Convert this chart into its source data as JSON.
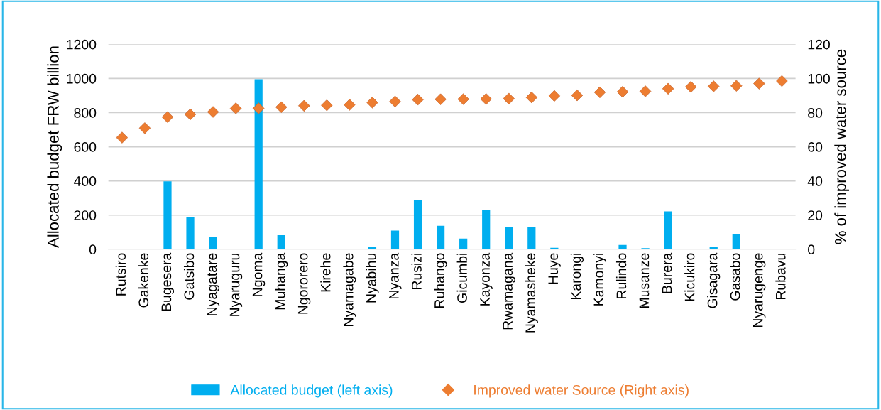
{
  "chart_data": {
    "type": "bar",
    "ylabel": "Allocated budget FRW billion",
    "y2label": "% of improved water source",
    "categories": [
      "Rutsiro",
      "Gakenke",
      "Bugesera",
      "Gatsibo",
      "Nyagatare",
      "Nyaruguru",
      "Ngoma",
      "Muhanga",
      "Ngororero",
      "Kirehe",
      "Nyamagabe",
      "Nyabihu",
      "Nyanza",
      "Rusizi",
      "Ruhango",
      "Gicumbi",
      "Kayonza",
      "Rwamagana",
      "Nyamasheke",
      "Huye",
      "Karongi",
      "Kamonyi",
      "Rulindo",
      "Musanze",
      "Burera",
      "Kicukiro",
      "Gisagara",
      "Gasabo",
      "Nyarugenge",
      "Rubavu"
    ],
    "series": [
      {
        "name": "Allocated budget (left axis)",
        "color": "#00aeef",
        "values": [
          0,
          0,
          397,
          187,
          72,
          0,
          995,
          82,
          0,
          0,
          0,
          15,
          109,
          286,
          138,
          63,
          228,
          132,
          130,
          9,
          0,
          0,
          25,
          7,
          222,
          0,
          13,
          91,
          0,
          0
        ]
      },
      {
        "name": "Improved water Source (Right axis)",
        "type": "scatter",
        "axis": "y2",
        "marker": "diamond",
        "color": "#ed7d31",
        "values": [
          65.4,
          70.9,
          77.4,
          79.0,
          80.4,
          82.5,
          82.5,
          83.2,
          84.0,
          84.3,
          84.6,
          85.9,
          86.5,
          87.6,
          87.8,
          87.9,
          88.0,
          88.2,
          88.9,
          89.8,
          90.1,
          91.9,
          92.2,
          92.5,
          94.0,
          95.1,
          95.4,
          95.7,
          97.0,
          98.5
        ]
      }
    ],
    "ylim": [
      0,
      1200
    ],
    "yticks": [
      0,
      200,
      400,
      600,
      800,
      1000,
      1200
    ],
    "y2lim": [
      0,
      120
    ],
    "y2ticks": [
      0,
      20,
      40,
      60,
      80,
      100,
      120
    ],
    "grid": "y",
    "legend": "bottom"
  }
}
